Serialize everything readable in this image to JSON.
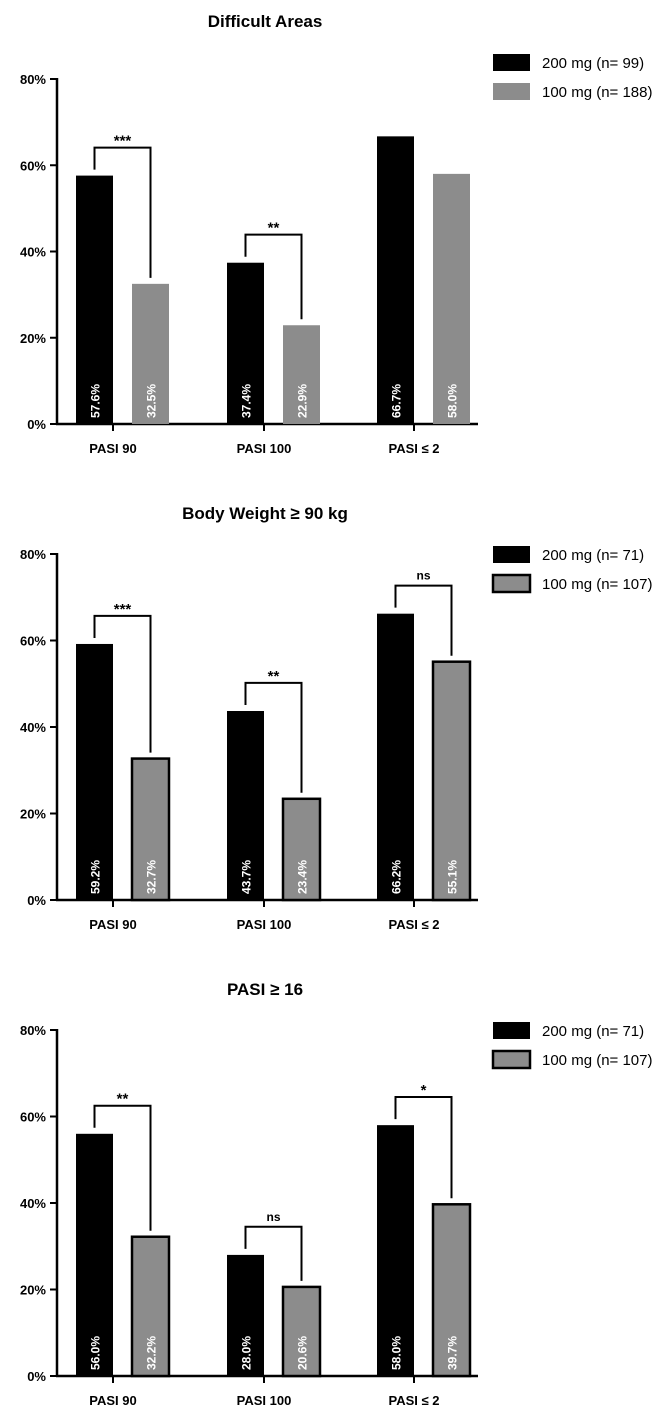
{
  "chart_data": [
    {
      "type": "bar",
      "title": "Difficult Areas",
      "categories": [
        "PASI 90",
        "PASI 100",
        "PASI ≤ 2"
      ],
      "ylim": [
        0,
        80
      ],
      "yticks": [
        "0%",
        "20%",
        "40%",
        "60%",
        "80%"
      ],
      "legend_position": "top-right",
      "series": [
        {
          "name": "200 mg (n= 99)",
          "values": [
            57.6,
            37.4,
            66.7
          ],
          "labels": [
            "57.6%",
            "37.4%",
            "66.7%"
          ],
          "color": "#000000",
          "outline": false
        },
        {
          "name": "100 mg (n= 188)",
          "values": [
            32.5,
            22.9,
            58.0
          ],
          "labels": [
            "32.5%",
            "22.9%",
            "58.0%"
          ],
          "color": "#8c8c8c",
          "outline": false
        }
      ],
      "significance": [
        "***",
        "**",
        ""
      ]
    },
    {
      "type": "bar",
      "title": "Body Weight ≥ 90 kg",
      "categories": [
        "PASI 90",
        "PASI 100",
        "PASI ≤ 2"
      ],
      "ylim": [
        0,
        80
      ],
      "yticks": [
        "0%",
        "20%",
        "40%",
        "60%",
        "80%"
      ],
      "legend_position": "top-right",
      "series": [
        {
          "name": "200 mg (n= 71)",
          "values": [
            59.2,
            43.7,
            66.2
          ],
          "labels": [
            "59.2%",
            "43.7%",
            "66.2%"
          ],
          "color": "#000000",
          "outline": false
        },
        {
          "name": "100 mg (n= 107)",
          "values": [
            32.7,
            23.4,
            55.1
          ],
          "labels": [
            "32.7%",
            "23.4%",
            "55.1%"
          ],
          "color": "#8c8c8c",
          "outline": true
        }
      ],
      "significance": [
        "***",
        "**",
        "ns"
      ]
    },
    {
      "type": "bar",
      "title": "PASI ≥ 16",
      "categories": [
        "PASI 90",
        "PASI 100",
        "PASI ≤ 2"
      ],
      "ylim": [
        0,
        80
      ],
      "yticks": [
        "0%",
        "20%",
        "40%",
        "60%",
        "80%"
      ],
      "legend_position": "top-right",
      "series": [
        {
          "name": "200 mg (n= 71)",
          "values": [
            56.0,
            28.0,
            58.0
          ],
          "labels": [
            "56.0%",
            "28.0%",
            "58.0%"
          ],
          "color": "#000000",
          "outline": false
        },
        {
          "name": "100 mg (n= 107)",
          "values": [
            32.2,
            20.6,
            39.7
          ],
          "labels": [
            "32.2%",
            "20.6%",
            "39.7%"
          ],
          "color": "#8c8c8c",
          "outline": true
        }
      ],
      "significance": [
        "**",
        "ns",
        "*"
      ]
    }
  ]
}
